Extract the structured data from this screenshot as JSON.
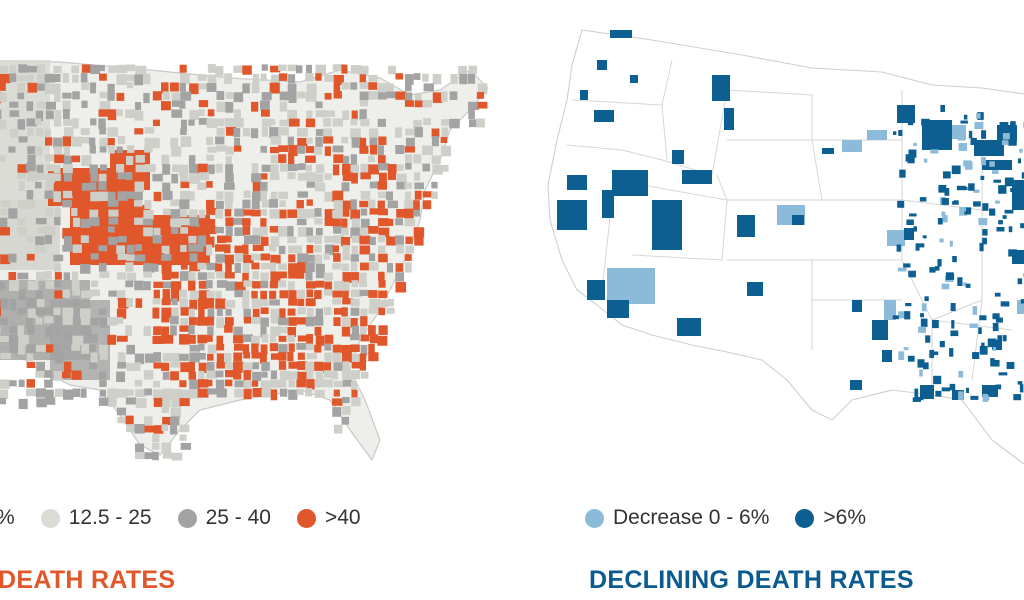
{
  "left": {
    "title": "DEATH RATES",
    "title_color": "#e0572b",
    "legend": [
      {
        "label": "%",
        "color": "#e9e9e4",
        "partial": true
      },
      {
        "label": "12.5 - 25",
        "color": "#dcdcd7"
      },
      {
        "label": "25 - 40",
        "color": "#a3a3a3"
      },
      {
        "label": ">40",
        "color": "#e0572b"
      }
    ]
  },
  "right": {
    "title": "DECLINING DEATH RATES",
    "title_color": "#0b5b8f",
    "legend": [
      {
        "label": "Decrease 0 - 6%",
        "color": "#8bbbd9"
      },
      {
        "label": ">6%",
        "color": "#0d5f92"
      }
    ]
  },
  "colors": {
    "map_fill_light": "#f1f1ee",
    "map_fill_mid": "#c9c9c5",
    "map_outline": "#c6c6c6",
    "orange": "#e0572b",
    "gray_dark": "#a3a3a3",
    "blue_dark": "#0d5f92",
    "blue_light": "#8bbbd9"
  }
}
